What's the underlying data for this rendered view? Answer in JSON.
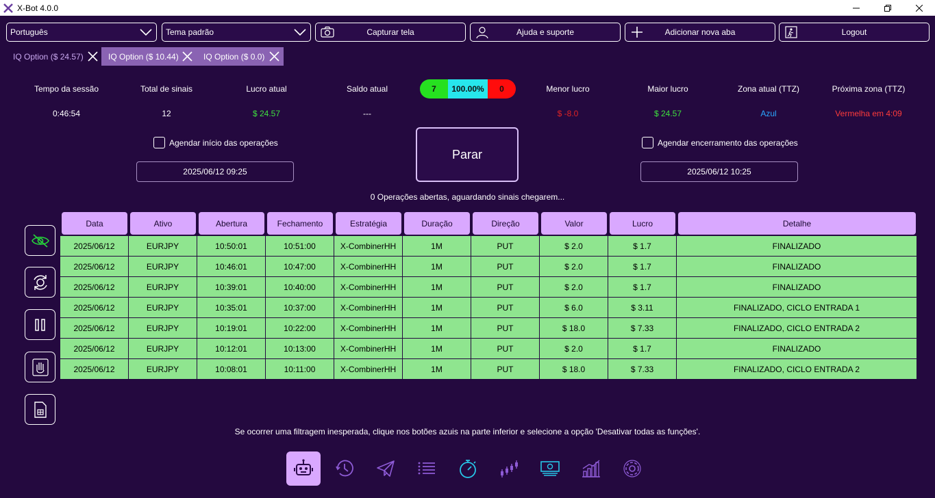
{
  "window": {
    "title": "X-Bot 4.0.0"
  },
  "top_controls": {
    "language": "Português",
    "theme": "Tema padrão",
    "capture": "Capturar tela",
    "help": "Ajuda e suporte",
    "add_tab": "Adicionar nova aba",
    "logout": "Logout"
  },
  "tabs": [
    {
      "label": "IQ Option ($ 24.57)"
    },
    {
      "label": "IQ Option ($ 10.44)"
    },
    {
      "label": "IQ Option ($ 0.0)"
    }
  ],
  "stats": {
    "session_time": {
      "label": "Tempo da sessão",
      "value": "0:46:54"
    },
    "total_signals": {
      "label": "Total de sinais",
      "value": "12"
    },
    "current_profit": {
      "label": "Lucro atual",
      "value": "$ 24.57"
    },
    "current_balance": {
      "label": "Saldo atual",
      "value": "---"
    },
    "min_profit": {
      "label": "Menor lucro",
      "value": "$ -8.0"
    },
    "max_profit": {
      "label": "Maior lucro",
      "value": "$ 24.57"
    },
    "current_zone": {
      "label": "Zona atual (TTZ)",
      "value": "Azul"
    },
    "next_zone": {
      "label": "Próxima zona (TTZ)",
      "value": "Vermelha em 4:09"
    }
  },
  "score": {
    "wins": "7",
    "percent": "100.00%",
    "losses": "0"
  },
  "schedule": {
    "start_label": "Agendar início das operações",
    "start_date": "2025/06/12 09:25",
    "end_label": "Agendar encerramento das operações",
    "end_date": "2025/06/12 10:25"
  },
  "stop_button": "Parar",
  "status_text": "0 Operações abertas, aguardando sinais chegarem...",
  "table": {
    "headers": [
      "Data",
      "Ativo",
      "Abertura",
      "Fechamento",
      "Estratégia",
      "Duração",
      "Direção",
      "Valor",
      "Lucro",
      "Detalhe"
    ],
    "rows": [
      [
        "2025/06/12",
        "EURJPY",
        "10:50:01",
        "10:51:00",
        "X-CombinerHH",
        "1M",
        "PUT",
        "$ 2.0",
        "$ 1.7",
        "FINALIZADO"
      ],
      [
        "2025/06/12",
        "EURJPY",
        "10:46:01",
        "10:47:00",
        "X-CombinerHH",
        "1M",
        "PUT",
        "$ 2.0",
        "$ 1.7",
        "FINALIZADO"
      ],
      [
        "2025/06/12",
        "EURJPY",
        "10:39:01",
        "10:40:00",
        "X-CombinerHH",
        "1M",
        "PUT",
        "$ 2.0",
        "$ 1.7",
        "FINALIZADO"
      ],
      [
        "2025/06/12",
        "EURJPY",
        "10:35:01",
        "10:37:00",
        "X-CombinerHH",
        "1M",
        "PUT",
        "$ 6.0",
        "$ 3.11",
        "FINALIZADO, CICLO ENTRADA 1"
      ],
      [
        "2025/06/12",
        "EURJPY",
        "10:19:01",
        "10:22:00",
        "X-CombinerHH",
        "1M",
        "PUT",
        "$ 18.0",
        "$ 7.33",
        "FINALIZADO, CICLO ENTRADA 2"
      ],
      [
        "2025/06/12",
        "EURJPY",
        "10:12:01",
        "10:13:00",
        "X-CombinerHH",
        "1M",
        "PUT",
        "$ 2.0",
        "$ 1.7",
        "FINALIZADO"
      ],
      [
        "2025/06/12",
        "EURJPY",
        "10:08:01",
        "10:11:00",
        "X-CombinerHH",
        "1M",
        "PUT",
        "$ 18.0",
        "$ 7.33",
        "FINALIZADO, CICLO ENTRADA 2"
      ]
    ]
  },
  "footer_note": "Se ocorrer uma filtragem inesperada, clique nos botões azuis na parte inferior e selecione a opção 'Desativar todas as funções'.",
  "side_buttons": [
    "eye-off-icon",
    "refresh-icon",
    "pause-icon",
    "hand-icon",
    "document-icon"
  ],
  "nav_buttons": [
    "robot-icon",
    "history-icon",
    "telegram-icon",
    "list-icon",
    "stopwatch-icon",
    "candles-icon",
    "money-icon",
    "chart-icon",
    "settings-icon"
  ],
  "colors": {
    "background": "#24093f",
    "accent": "#d9a8ff",
    "row_green": "#8fe58f",
    "profit_green": "#3ee03e",
    "loss_red": "#ff2a2a",
    "zone_blue": "#2aa8ff",
    "zone_red": "#ff3b3b"
  }
}
